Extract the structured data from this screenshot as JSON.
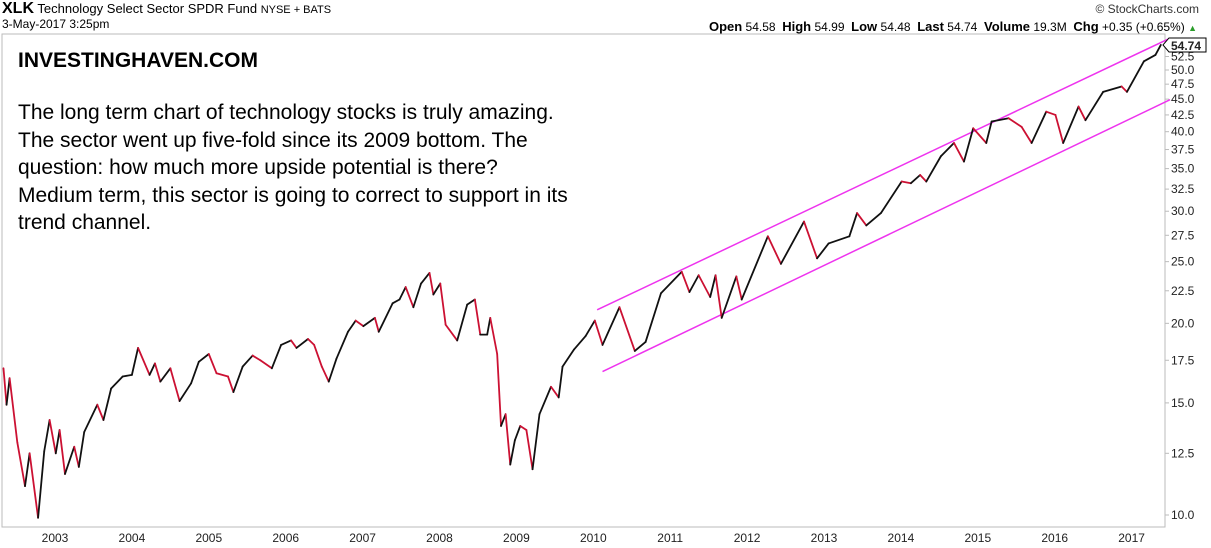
{
  "header": {
    "symbol": "XLK",
    "name": "Technology Select Sector SPDR Fund",
    "exchange": "NYSE + BATS",
    "datetime": "3-May-2017 3:25pm",
    "copyright": "© StockCharts.com",
    "open_label": "Open",
    "open": "54.58",
    "high_label": "High",
    "high": "54.99",
    "low_label": "Low",
    "low": "54.48",
    "last_label": "Last",
    "last": "54.74",
    "volume_label": "Volume",
    "volume": "19.3M",
    "chg_label": "Chg",
    "chg": "+0.35 (+0.65%)",
    "chg_icon": "up-triangle-icon"
  },
  "overlay": {
    "brand": "INVESTINGHAVEN.COM",
    "note": "The long term chart of technology stocks is truly amazing. The sector went up five-fold since its 2009 bottom. The question: how much more upside potential is there? Medium term, this sector is going to correct to support in its trend channel."
  },
  "colors": {
    "up": "#111111",
    "down": "#cc1133",
    "channel": "#ee33ee",
    "grid": "#bbbbbb"
  },
  "chart_data": {
    "type": "line",
    "title": "XLK Technology Select Sector SPDR Fund",
    "scale": "log",
    "ylim": [
      9.8,
      56.5
    ],
    "xlim": [
      2002.3,
      2017.45
    ],
    "last_price_label": "54.74",
    "x_ticks": [
      "2003",
      "2004",
      "2005",
      "2006",
      "2007",
      "2008",
      "2009",
      "2010",
      "2011",
      "2012",
      "2013",
      "2014",
      "2015",
      "2016",
      "2017"
    ],
    "y_ticks": [
      "10.0",
      "12.5",
      "15.0",
      "17.5",
      "20.0",
      "22.5",
      "25.0",
      "27.5",
      "30.0",
      "32.5",
      "35.0",
      "37.5",
      "40.0",
      "42.5",
      "45.0",
      "47.5",
      "50.0",
      "52.5"
    ],
    "series": [
      {
        "name": "XLK",
        "points": [
          [
            2002.33,
            17.0
          ],
          [
            2002.37,
            14.9
          ],
          [
            2002.41,
            16.4
          ],
          [
            2002.51,
            13.0
          ],
          [
            2002.61,
            11.1
          ],
          [
            2002.67,
            12.5
          ],
          [
            2002.78,
            9.9
          ],
          [
            2002.86,
            12.6
          ],
          [
            2002.93,
            14.1
          ],
          [
            2003.01,
            12.5
          ],
          [
            2003.06,
            13.6
          ],
          [
            2003.13,
            11.6
          ],
          [
            2003.25,
            12.8
          ],
          [
            2003.31,
            11.9
          ],
          [
            2003.38,
            13.5
          ],
          [
            2003.55,
            14.9
          ],
          [
            2003.63,
            14.1
          ],
          [
            2003.73,
            15.8
          ],
          [
            2003.88,
            16.5
          ],
          [
            2004.0,
            16.6
          ],
          [
            2004.08,
            18.3
          ],
          [
            2004.23,
            16.6
          ],
          [
            2004.3,
            17.3
          ],
          [
            2004.37,
            16.2
          ],
          [
            2004.5,
            17.0
          ],
          [
            2004.62,
            15.1
          ],
          [
            2004.77,
            16.1
          ],
          [
            2004.87,
            17.4
          ],
          [
            2005.0,
            17.9
          ],
          [
            2005.1,
            16.7
          ],
          [
            2005.25,
            16.5
          ],
          [
            2005.32,
            15.6
          ],
          [
            2005.44,
            17.1
          ],
          [
            2005.57,
            17.8
          ],
          [
            2005.67,
            17.5
          ],
          [
            2005.82,
            17.0
          ],
          [
            2005.94,
            18.5
          ],
          [
            2006.07,
            18.8
          ],
          [
            2006.14,
            18.3
          ],
          [
            2006.29,
            18.9
          ],
          [
            2006.37,
            18.5
          ],
          [
            2006.47,
            17.1
          ],
          [
            2006.56,
            16.2
          ],
          [
            2006.66,
            17.6
          ],
          [
            2006.81,
            19.4
          ],
          [
            2006.91,
            20.2
          ],
          [
            2007.01,
            19.8
          ],
          [
            2007.16,
            20.4
          ],
          [
            2007.21,
            19.4
          ],
          [
            2007.39,
            21.5
          ],
          [
            2007.48,
            21.8
          ],
          [
            2007.56,
            22.8
          ],
          [
            2007.66,
            21.2
          ],
          [
            2007.76,
            23.1
          ],
          [
            2007.87,
            24.0
          ],
          [
            2007.92,
            22.2
          ],
          [
            2008.01,
            23.1
          ],
          [
            2008.08,
            19.9
          ],
          [
            2008.23,
            18.8
          ],
          [
            2008.36,
            21.4
          ],
          [
            2008.46,
            21.8
          ],
          [
            2008.53,
            19.2
          ],
          [
            2008.62,
            19.2
          ],
          [
            2008.66,
            20.4
          ],
          [
            2008.75,
            17.9
          ],
          [
            2008.8,
            13.8
          ],
          [
            2008.86,
            14.4
          ],
          [
            2008.92,
            12.0
          ],
          [
            2008.98,
            13.1
          ],
          [
            2009.05,
            13.8
          ],
          [
            2009.13,
            13.6
          ],
          [
            2009.21,
            11.8
          ],
          [
            2009.3,
            14.4
          ],
          [
            2009.45,
            15.9
          ],
          [
            2009.55,
            15.3
          ],
          [
            2009.6,
            17.1
          ],
          [
            2009.75,
            18.2
          ],
          [
            2009.9,
            19.1
          ],
          [
            2010.02,
            20.2
          ],
          [
            2010.12,
            18.5
          ],
          [
            2010.34,
            21.2
          ],
          [
            2010.54,
            18.1
          ],
          [
            2010.68,
            18.7
          ],
          [
            2010.88,
            22.3
          ],
          [
            2011.15,
            24.1
          ],
          [
            2011.25,
            22.4
          ],
          [
            2011.37,
            23.8
          ],
          [
            2011.52,
            22.0
          ],
          [
            2011.59,
            23.8
          ],
          [
            2011.67,
            20.4
          ],
          [
            2011.86,
            23.7
          ],
          [
            2011.93,
            21.8
          ],
          [
            2012.27,
            27.4
          ],
          [
            2012.44,
            24.8
          ],
          [
            2012.74,
            28.9
          ],
          [
            2012.91,
            25.3
          ],
          [
            2013.06,
            26.7
          ],
          [
            2013.33,
            27.4
          ],
          [
            2013.43,
            29.8
          ],
          [
            2013.55,
            28.5
          ],
          [
            2013.74,
            29.8
          ],
          [
            2014.01,
            33.4
          ],
          [
            2014.13,
            33.2
          ],
          [
            2014.25,
            34.2
          ],
          [
            2014.33,
            33.4
          ],
          [
            2014.52,
            36.6
          ],
          [
            2014.69,
            38.4
          ],
          [
            2014.82,
            35.9
          ],
          [
            2014.94,
            40.5
          ],
          [
            2015.11,
            38.4
          ],
          [
            2015.18,
            41.5
          ],
          [
            2015.4,
            42.0
          ],
          [
            2015.57,
            40.7
          ],
          [
            2015.7,
            38.4
          ],
          [
            2015.89,
            43.0
          ],
          [
            2016.01,
            42.5
          ],
          [
            2016.11,
            38.4
          ],
          [
            2016.31,
            43.8
          ],
          [
            2016.4,
            41.7
          ],
          [
            2016.63,
            46.2
          ],
          [
            2016.87,
            47.1
          ],
          [
            2016.94,
            46.2
          ],
          [
            2017.16,
            51.6
          ],
          [
            2017.31,
            52.8
          ],
          [
            2017.38,
            54.74
          ]
        ]
      }
    ],
    "trendlines": [
      {
        "name": "upper-channel",
        "from": [
          2010.05,
          21.0
        ],
        "to": [
          2017.5,
          56.1
        ]
      },
      {
        "name": "lower-channel",
        "from": [
          2010.12,
          16.8
        ],
        "to": [
          2017.5,
          44.9
        ]
      }
    ]
  }
}
